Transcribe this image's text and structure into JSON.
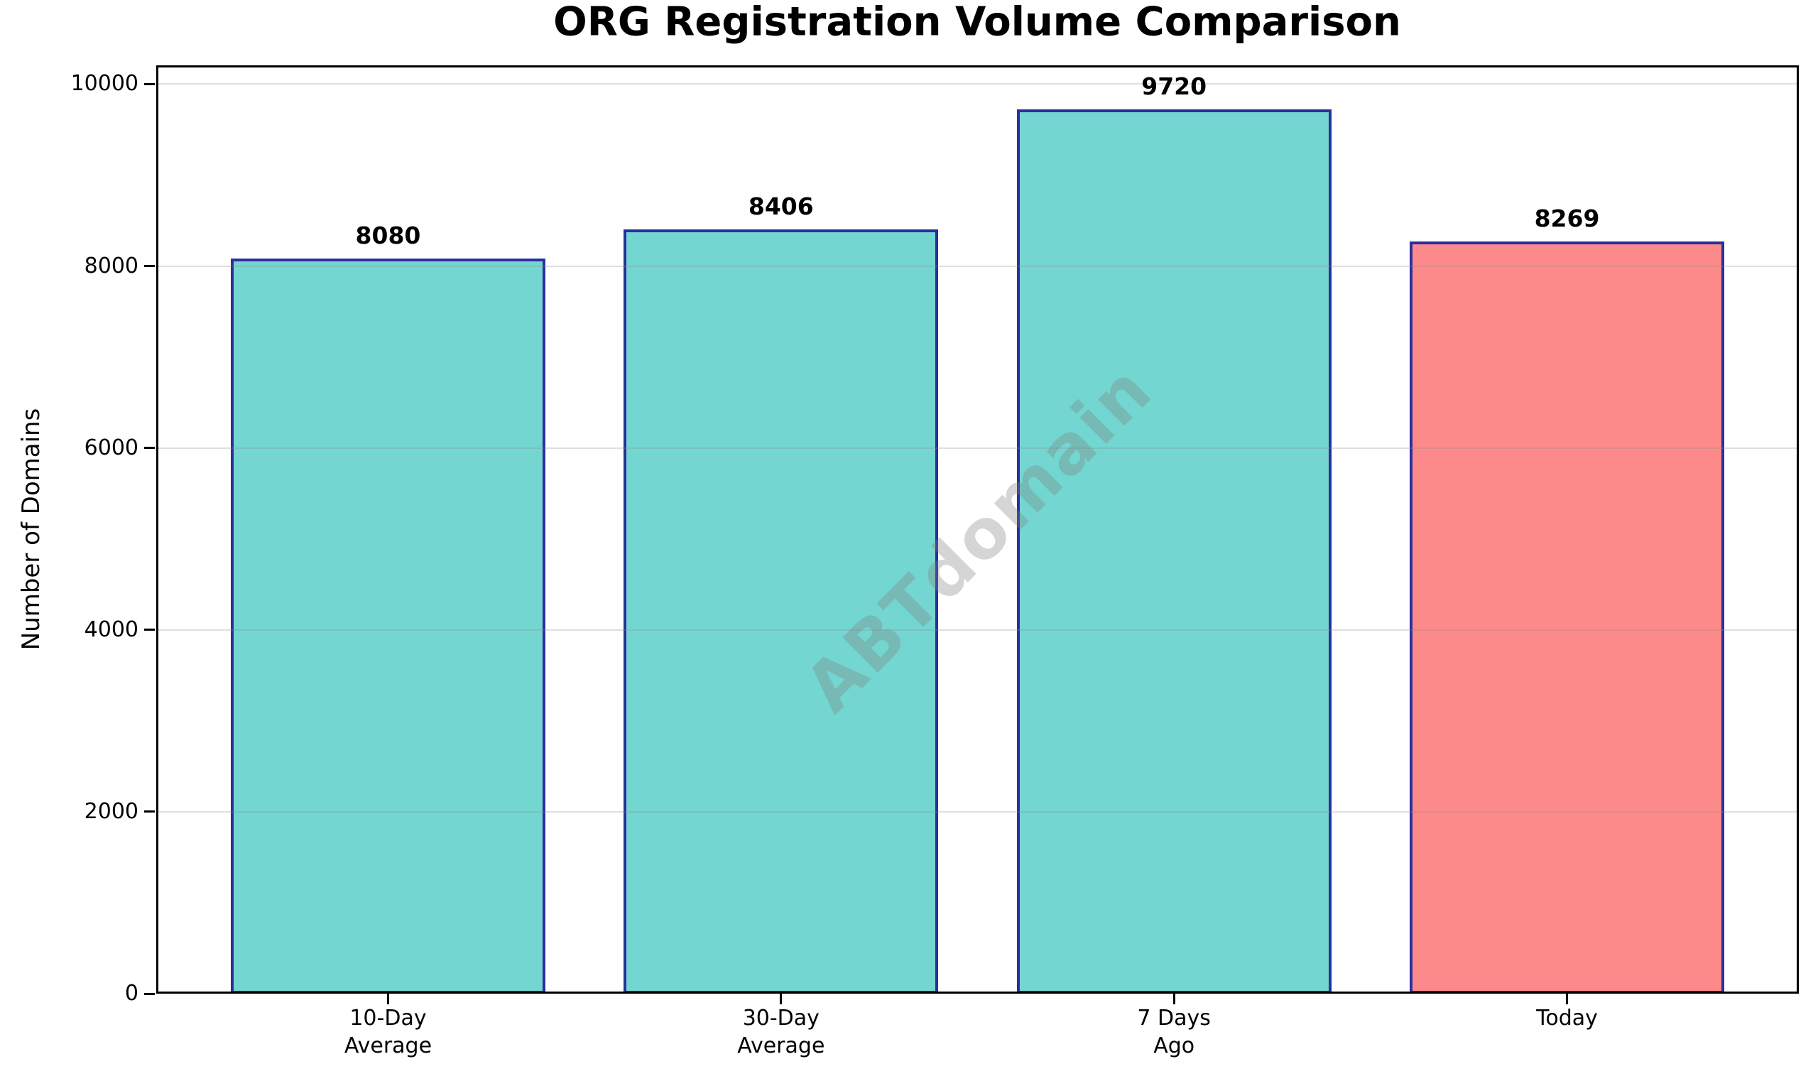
{
  "chart_data": {
    "type": "bar",
    "title": "ORG Registration Volume Comparison",
    "ylabel": "Number of Domains",
    "xlabel": "",
    "categories": [
      "10-Day\nAverage",
      "30-Day\nAverage",
      "7 Days\nAgo",
      "Today"
    ],
    "values": [
      8080,
      8406,
      9720,
      8269
    ],
    "value_labels": [
      "8080",
      "8406",
      "9720",
      "8269"
    ],
    "bar_colors": [
      "#74D6D0",
      "#74D6D0",
      "#74D6D0",
      "#FD8A8A"
    ],
    "bar_edge_color": "#2A2F9E",
    "yticks": [
      0,
      2000,
      4000,
      6000,
      8000,
      10000
    ],
    "ytick_labels": [
      "0",
      "2000",
      "4000",
      "6000",
      "8000",
      "10000"
    ],
    "ylim": [
      0,
      10206
    ],
    "grid": "horizontal",
    "gridline_color": "rgba(140,140,140,0.28)",
    "legend": "none",
    "watermark": {
      "text": "ABTdomain",
      "color": "rgba(127,127,127,0.33)",
      "rotation_deg": -45
    }
  }
}
